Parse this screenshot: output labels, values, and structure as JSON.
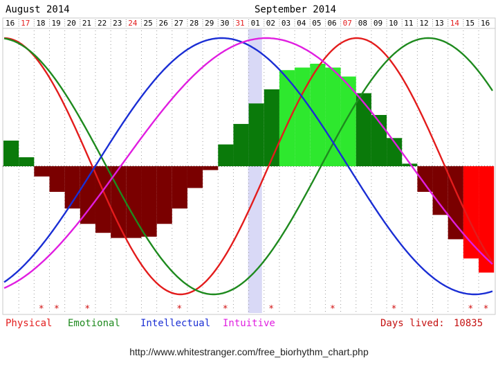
{
  "header": {
    "month_left": "August 2014",
    "month_right": "September 2014"
  },
  "footer": {
    "url": "http://www.whitestranger.com/free_biorhythm_chart.php"
  },
  "chart_data": {
    "type": "line",
    "title": "",
    "days": [
      "16",
      "17",
      "18",
      "19",
      "20",
      "21",
      "22",
      "23",
      "24",
      "25",
      "26",
      "27",
      "28",
      "29",
      "30",
      "31",
      "01",
      "02",
      "03",
      "04",
      "05",
      "06",
      "07",
      "08",
      "09",
      "10",
      "11",
      "12",
      "13",
      "14",
      "15",
      "16"
    ],
    "red_days": [
      "17",
      "24",
      "31",
      "07",
      "14"
    ],
    "highlight_day": "01",
    "ylim": [
      -1,
      1
    ],
    "series": [
      {
        "name": "Physical",
        "color": "#e31c1c",
        "period": 23,
        "offset_days": 0
      },
      {
        "name": "Emotional",
        "color": "#1e8a1e",
        "period": 28,
        "offset_days": 0
      },
      {
        "name": "Intellectual",
        "color": "#1a2ed4",
        "period": 33,
        "offset_days": 0
      },
      {
        "name": "Intuitive",
        "color": "#e01ee0",
        "period": 38,
        "offset_days": 0
      }
    ],
    "bars": {
      "values": [
        0.2,
        0.07,
        -0.08,
        -0.2,
        -0.33,
        -0.45,
        -0.52,
        -0.56,
        -0.56,
        -0.55,
        -0.45,
        -0.33,
        -0.17,
        -0.03,
        0.17,
        0.33,
        0.49,
        0.6,
        0.75,
        0.77,
        0.8,
        0.77,
        0.7,
        0.57,
        0.4,
        0.22,
        0.02,
        -0.2,
        -0.38,
        -0.57,
        -0.72,
        -0.83
      ],
      "colors": [
        "#0a7a0a",
        "#0a7a0a",
        "#7a0000",
        "#7a0000",
        "#7a0000",
        "#7a0000",
        "#7a0000",
        "#7a0000",
        "#7a0000",
        "#7a0000",
        "#7a0000",
        "#7a0000",
        "#7a0000",
        "#7a0000",
        "#0a7a0a",
        "#0a7a0a",
        "#0a7a0a",
        "#0a7a0a",
        "#2ee82e",
        "#2ee82e",
        "#2ee82e",
        "#2ee82e",
        "#2ee82e",
        "#0a7a0a",
        "#0a7a0a",
        "#0a7a0a",
        "#0a7a0a",
        "#7a0000",
        "#7a0000",
        "#7a0000",
        "#ff0000",
        "#ff0000"
      ]
    },
    "critical_marks": [
      "18",
      "19",
      "21",
      "27",
      "30",
      "02",
      "06",
      "10",
      "15",
      "16"
    ],
    "legend": [
      "Physical",
      "Emotional",
      "Intellectual",
      "Intuitive"
    ],
    "days_lived_label": "Days lived:",
    "days_lived_value": "10835"
  }
}
